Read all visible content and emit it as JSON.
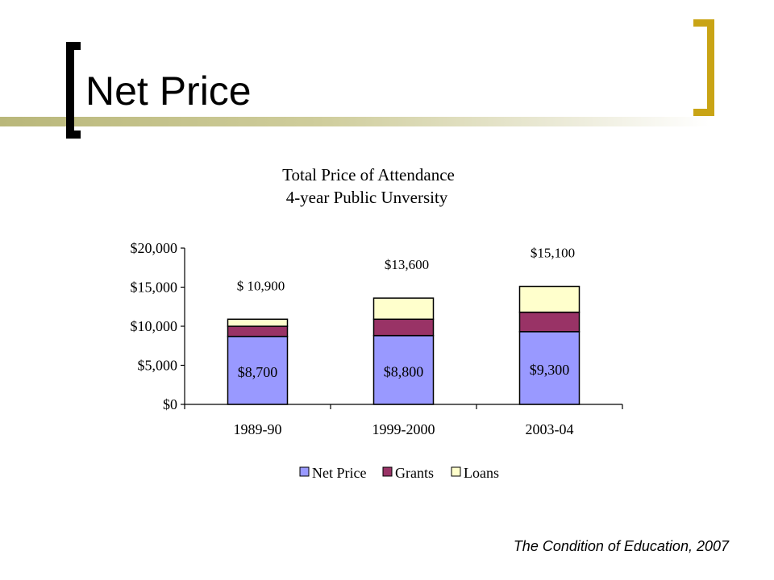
{
  "slide": {
    "title": "Net Price",
    "footer": "The Condition of Education, 2007"
  },
  "colors": {
    "net_price": "#9999ff",
    "grants": "#993366",
    "loans": "#ffffcc",
    "bracket_left": "#000000",
    "bracket_right": "#c9a415"
  },
  "chart_data": {
    "type": "bar",
    "stacked": true,
    "title": "Total Price of Attendance",
    "subtitle": "4-year Public Unversity",
    "categories": [
      "1989-90",
      "1999-2000",
      "2003-04"
    ],
    "series": [
      {
        "name": "Net Price",
        "values": [
          8700,
          8800,
          9300
        ],
        "labels": [
          "$8,700",
          "$8,800",
          "$9,300"
        ]
      },
      {
        "name": "Grants",
        "values": [
          1300,
          2100,
          2500
        ]
      },
      {
        "name": "Loans",
        "values": [
          900,
          2700,
          3300
        ]
      }
    ],
    "totals": [
      10900,
      13600,
      15100
    ],
    "total_labels": [
      "$ 10,900",
      "$13,600",
      "$15,100"
    ],
    "ylim": [
      0,
      20000
    ],
    "yticks": [
      0,
      5000,
      10000,
      15000,
      20000
    ],
    "ytick_labels": [
      "$0",
      "$5,000",
      "$10,000",
      "$15,000",
      "$20,000"
    ],
    "grid": false,
    "legend": "bottom"
  }
}
